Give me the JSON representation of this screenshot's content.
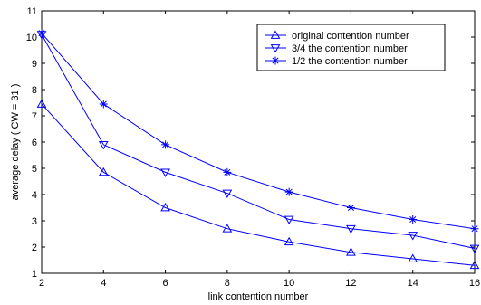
{
  "chart_data": {
    "type": "line",
    "xlabel": "link contention number",
    "ylabel": "average delay ( CW = 31 )",
    "xlim": [
      2,
      16
    ],
    "ylim": [
      1,
      11
    ],
    "xticks": [
      2,
      4,
      6,
      8,
      10,
      12,
      14,
      16
    ],
    "yticks": [
      1,
      2,
      3,
      4,
      5,
      6,
      7,
      8,
      9,
      10,
      11
    ],
    "grid": false,
    "legend_position": "top-right",
    "line_color": "#0000ff",
    "x": [
      2,
      4,
      6,
      8,
      10,
      12,
      14,
      16
    ],
    "series": [
      {
        "name": "original contention number",
        "marker": "triangle-up",
        "values": [
          7.45,
          4.85,
          3.5,
          2.7,
          2.2,
          1.8,
          1.55,
          1.3
        ]
      },
      {
        "name": "3/4 the contention number",
        "marker": "triangle-down",
        "values": [
          10.1,
          5.9,
          4.85,
          4.05,
          3.05,
          2.7,
          2.45,
          1.95
        ]
      },
      {
        "name": "1/2 the contention number",
        "marker": "star",
        "values": [
          10.15,
          7.45,
          5.9,
          4.85,
          4.1,
          3.5,
          3.05,
          2.7
        ]
      }
    ]
  }
}
